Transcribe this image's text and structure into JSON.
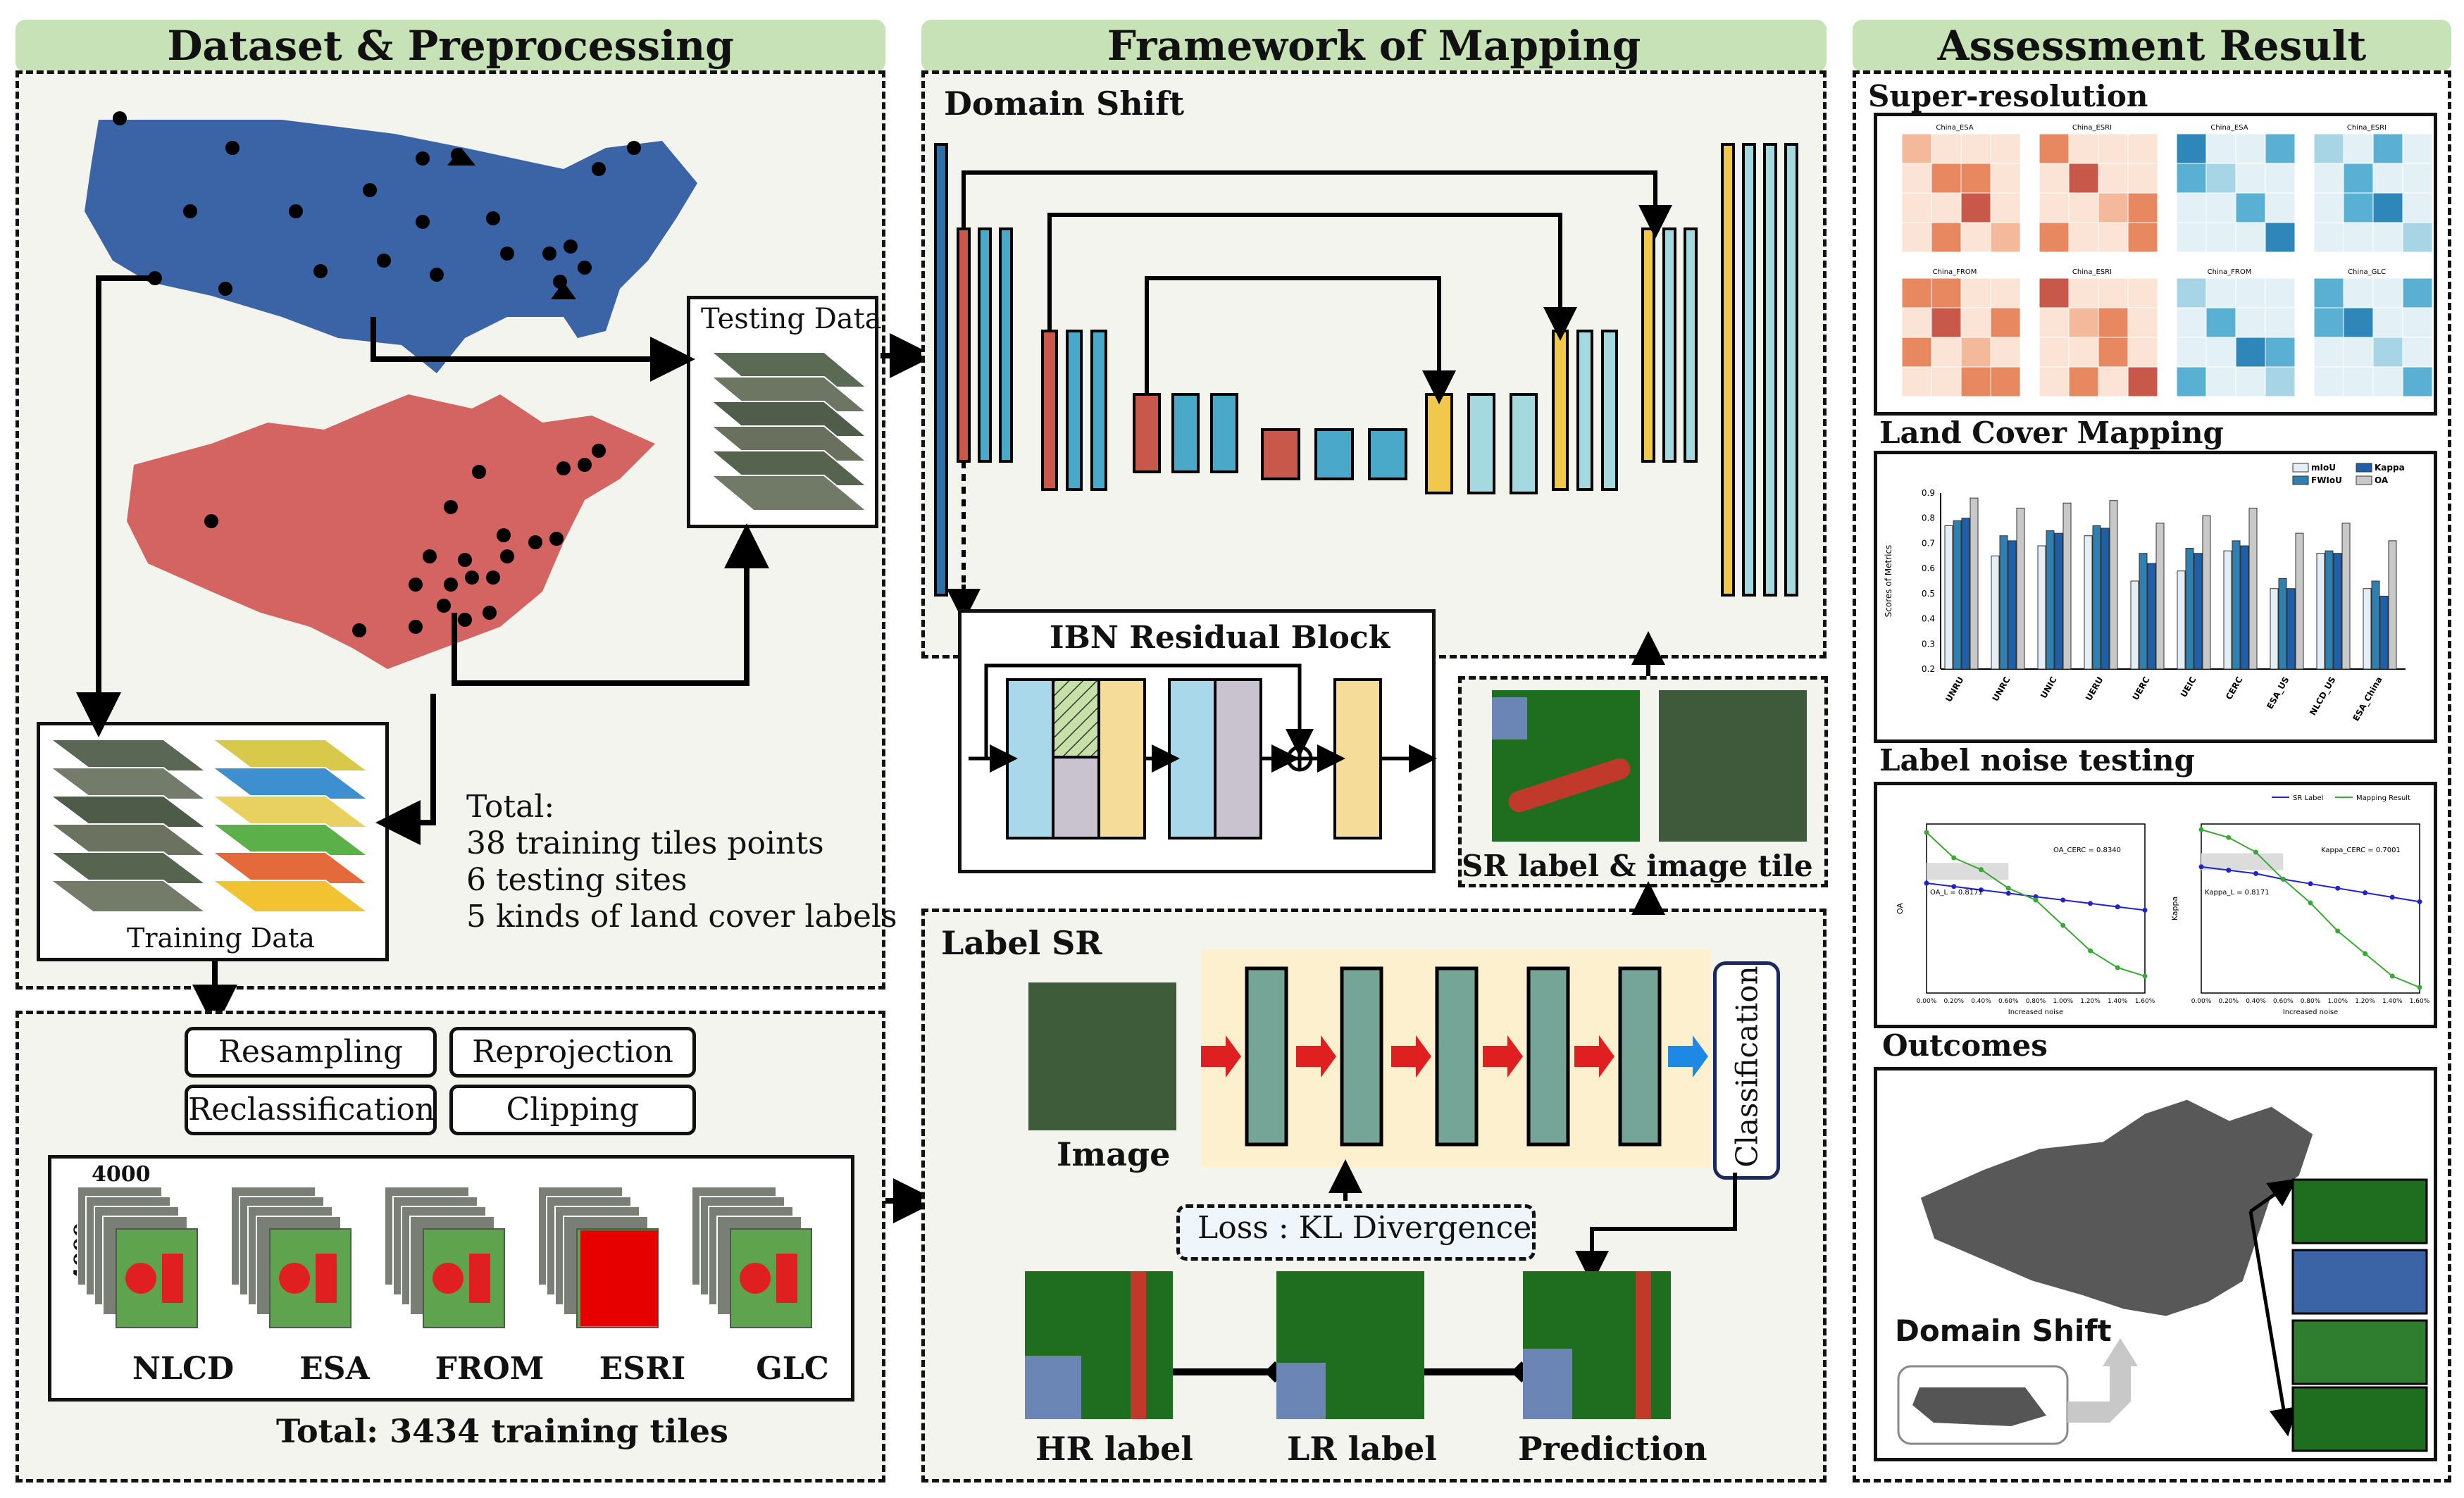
{
  "headers": {
    "dataset": "Dataset & Preprocessing",
    "framework": "Framework of Mapping",
    "assessment": "Assessment Result"
  },
  "dataset": {
    "testing_data": "Testing Data",
    "training_data": "Training Data",
    "total_title": "Total:",
    "total_line1": "38 training tiles points",
    "total_line2": "6 testing sites",
    "total_line3": "5 kinds of land cover labels",
    "preprocess": [
      "Resampling",
      "Reprojection",
      "Reclassification",
      "Clipping"
    ],
    "dim_w": "4000",
    "dim_h": "4000",
    "labels": [
      "NLCD",
      "ESA",
      "FROM",
      "ESRI",
      "GLC"
    ],
    "total_tiles": "Total: 3434 training tiles"
  },
  "framework": {
    "domain_shift": "Domain Shift",
    "ibn_block": "IBN Residual Block",
    "sr_label_tile": "SR label & image tile",
    "label_sr": "Label SR",
    "image": "Image",
    "loss": "Loss : KL Divergence",
    "classification": "Classification",
    "hr_label": "HR label",
    "lr_label": "LR label",
    "prediction": "Prediction"
  },
  "assessment": {
    "super_resolution": "Super-resolution",
    "land_cover_mapping": "Land Cover Mapping",
    "label_noise": "Label noise testing",
    "outcomes": "Outcomes",
    "domain_shift": "Domain Shift",
    "matrix_titles": [
      "China_ESA",
      "China_ESRI",
      "China_ESA",
      "China_ESRI",
      "China_FROM",
      "China_ESRI",
      "China_FROM",
      "China_GLC"
    ],
    "bar_legend": [
      "mIoU",
      "Kappa",
      "FWIoU",
      "OA"
    ],
    "bar_ylabel": "Scores of Metrics",
    "noise_legend": [
      "SR Label",
      "Mapping Result"
    ],
    "noise_annot": [
      "OA_CERC = 0.8340",
      "OA_L = 0.8171",
      "Kappa_CERC = 0.7001",
      "Kappa_L = 0.8171"
    ],
    "noise_xlabel": "Increased noise"
  },
  "chart_data": [
    {
      "type": "bar",
      "title": "",
      "ylabel": "Scores of Metrics",
      "categories": [
        "UNRU",
        "UNRC",
        "UNIC",
        "UERU",
        "UERC",
        "UEIC",
        "CERC",
        "ESA_US",
        "NLCD_US",
        "ESA_China"
      ],
      "ylim": [
        0.2,
        0.9
      ],
      "series": [
        {
          "name": "mIoU",
          "color": "#e3eef5",
          "values": [
            0.77,
            0.65,
            0.69,
            0.73,
            0.55,
            0.59,
            0.67,
            0.52,
            0.66,
            0.52
          ]
        },
        {
          "name": "FWIoU",
          "color": "#2f7fb0",
          "values": [
            0.79,
            0.73,
            0.75,
            0.77,
            0.66,
            0.68,
            0.71,
            0.56,
            0.67,
            0.55
          ]
        },
        {
          "name": "Kappa",
          "color": "#1f5fa8",
          "values": [
            0.8,
            0.71,
            0.74,
            0.76,
            0.62,
            0.66,
            0.69,
            0.52,
            0.66,
            0.49
          ]
        },
        {
          "name": "OA",
          "color": "#c8c8c8",
          "values": [
            0.88,
            0.84,
            0.86,
            0.87,
            0.78,
            0.81,
            0.84,
            0.74,
            0.78,
            0.71
          ]
        }
      ]
    },
    {
      "type": "line",
      "title": "",
      "xlabel": "Increased noise",
      "ylabel": "OA",
      "x": [
        "0.00%",
        "0.20%",
        "0.40%",
        "0.60%",
        "0.80%",
        "1.00%",
        "1.20%",
        "1.40%",
        "1.60%"
      ],
      "ylim": [
        0.76,
        0.86
      ],
      "series": [
        {
          "name": "SR Label",
          "color": "#2222cc",
          "values": [
            0.825,
            0.823,
            0.821,
            0.819,
            0.817,
            0.815,
            0.813,
            0.811,
            0.809
          ]
        },
        {
          "name": "Mapping Result",
          "color": "#3aa835",
          "values": [
            0.855,
            0.84,
            0.833,
            0.822,
            0.815,
            0.8,
            0.785,
            0.775,
            0.77
          ]
        }
      ]
    },
    {
      "type": "line",
      "title": "",
      "xlabel": "Increased noise",
      "ylabel": "Kappa",
      "x": [
        "0.00%",
        "0.20%",
        "0.40%",
        "0.60%",
        "0.80%",
        "1.00%",
        "1.20%",
        "1.40%",
        "1.60%"
      ],
      "ylim": [
        0.6,
        0.75
      ],
      "series": [
        {
          "name": "SR Label",
          "color": "#2222cc",
          "values": [
            0.712,
            0.709,
            0.706,
            0.701,
            0.697,
            0.693,
            0.689,
            0.685,
            0.681
          ]
        },
        {
          "name": "Mapping Result",
          "color": "#3aa835",
          "values": [
            0.745,
            0.738,
            0.725,
            0.701,
            0.68,
            0.655,
            0.635,
            0.615,
            0.605
          ]
        }
      ]
    }
  ]
}
